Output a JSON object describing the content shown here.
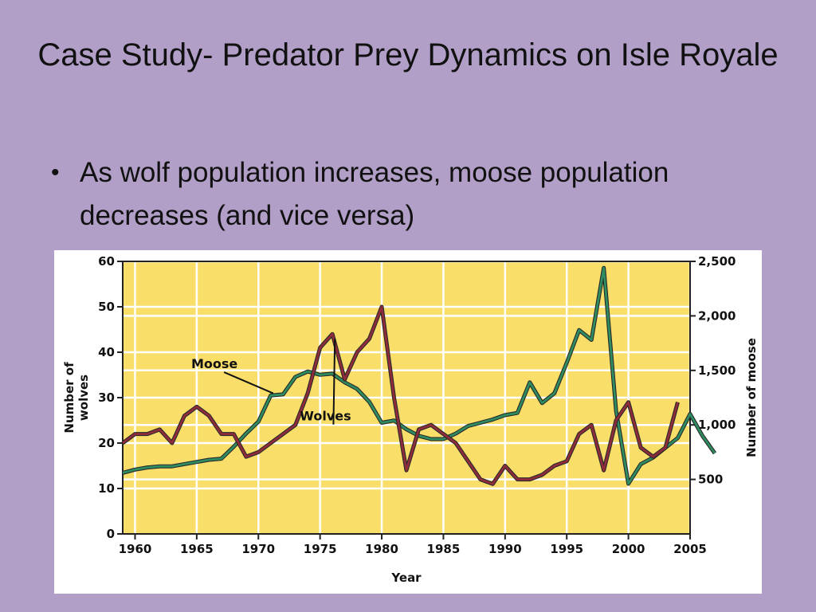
{
  "slide": {
    "title": "Case Study- Predator Prey Dynamics on Isle Royale",
    "bullets": [
      "As wolf population increases, moose population decreases (and vice versa)"
    ]
  },
  "chart_data": {
    "type": "line",
    "xlabel": "Year",
    "ylabel_left": "Number of wolves",
    "ylabel_right": "Number of moose",
    "xlim": [
      1959,
      2005
    ],
    "x_ticks": [
      "1960",
      "1965",
      "1970",
      "1975",
      "1980",
      "1985",
      "1990",
      "1995",
      "2000",
      "2005"
    ],
    "y_left_ticks": [
      "0",
      "10",
      "20",
      "30",
      "40",
      "50",
      "60"
    ],
    "y_right_ticks": [
      "500",
      "1,000",
      "1,500",
      "2,000",
      "2,500"
    ],
    "ylim_left": [
      0,
      60
    ],
    "ylim_right": [
      0,
      2500
    ],
    "grid": true,
    "colors": {
      "plot_bg": "#f9de6a",
      "moose": "#2e8c61",
      "wolves": "#8e2c3c",
      "grid": "#ffffff"
    },
    "series": [
      {
        "name": "Moose",
        "axis": "right",
        "points": [
          [
            1959,
            560
          ],
          [
            1960,
            590
          ],
          [
            1961,
            610
          ],
          [
            1962,
            620
          ],
          [
            1963,
            620
          ],
          [
            1964,
            640
          ],
          [
            1965,
            660
          ],
          [
            1966,
            680
          ],
          [
            1967,
            690
          ],
          [
            1968,
            800
          ],
          [
            1969,
            920
          ],
          [
            1970,
            1030
          ],
          [
            1971,
            1270
          ],
          [
            1972,
            1280
          ],
          [
            1973,
            1440
          ],
          [
            1974,
            1490
          ],
          [
            1975,
            1460
          ],
          [
            1976,
            1470
          ],
          [
            1977,
            1390
          ],
          [
            1978,
            1330
          ],
          [
            1979,
            1210
          ],
          [
            1980,
            1020
          ],
          [
            1981,
            1040
          ],
          [
            1982,
            960
          ],
          [
            1983,
            900
          ],
          [
            1984,
            870
          ],
          [
            1985,
            870
          ],
          [
            1986,
            920
          ],
          [
            1987,
            990
          ],
          [
            1988,
            1020
          ],
          [
            1989,
            1050
          ],
          [
            1990,
            1090
          ],
          [
            1991,
            1110
          ],
          [
            1992,
            1390
          ],
          [
            1993,
            1200
          ],
          [
            1994,
            1290
          ],
          [
            1995,
            1570
          ],
          [
            1996,
            1870
          ],
          [
            1997,
            1780
          ],
          [
            1998,
            2440
          ],
          [
            1999,
            1130
          ],
          [
            2000,
            460
          ],
          [
            2001,
            640
          ],
          [
            2002,
            700
          ],
          [
            2003,
            790
          ],
          [
            2004,
            880
          ],
          [
            2005,
            1100
          ],
          [
            2006,
            900
          ],
          [
            2007,
            740
          ]
        ]
      },
      {
        "name": "Wolves",
        "axis": "left",
        "points": [
          [
            1959,
            20
          ],
          [
            1960,
            22
          ],
          [
            1961,
            22
          ],
          [
            1962,
            23
          ],
          [
            1963,
            20
          ],
          [
            1964,
            26
          ],
          [
            1965,
            28
          ],
          [
            1966,
            26
          ],
          [
            1967,
            22
          ],
          [
            1968,
            22
          ],
          [
            1969,
            17
          ],
          [
            1970,
            18
          ],
          [
            1971,
            20
          ],
          [
            1972,
            22
          ],
          [
            1973,
            24
          ],
          [
            1974,
            31
          ],
          [
            1975,
            41
          ],
          [
            1976,
            44
          ],
          [
            1977,
            34
          ],
          [
            1978,
            40
          ],
          [
            1979,
            43
          ],
          [
            1980,
            50
          ],
          [
            1981,
            30
          ],
          [
            1982,
            14
          ],
          [
            1983,
            23
          ],
          [
            1984,
            24
          ],
          [
            1985,
            22
          ],
          [
            1986,
            20
          ],
          [
            1987,
            16
          ],
          [
            1988,
            12
          ],
          [
            1989,
            11
          ],
          [
            1990,
            15
          ],
          [
            1991,
            12
          ],
          [
            1992,
            12
          ],
          [
            1993,
            13
          ],
          [
            1994,
            15
          ],
          [
            1995,
            16
          ],
          [
            1996,
            22
          ],
          [
            1997,
            24
          ],
          [
            1998,
            14
          ],
          [
            1999,
            25
          ],
          [
            2000,
            29
          ],
          [
            2001,
            19
          ],
          [
            2002,
            17
          ],
          [
            2003,
            19
          ],
          [
            2004,
            29
          ]
        ]
      }
    ]
  }
}
